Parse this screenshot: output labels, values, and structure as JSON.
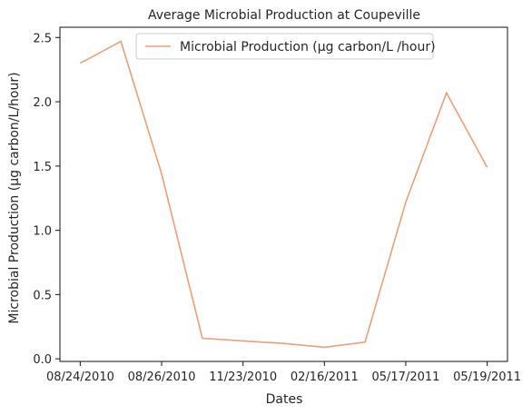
{
  "chart_data": {
    "type": "line",
    "title": "Average Microbial Production at Coupeville",
    "xlabel": "Dates",
    "ylabel": "Microbial Production (µg carbon/L/hour)",
    "x_tick_labels": [
      "08/24/2010",
      "08/26/2010",
      "11/23/2010",
      "02/16/2011",
      "05/17/2011",
      "05/19/2011"
    ],
    "x_tick_index": [
      0,
      2,
      4,
      6,
      8,
      10
    ],
    "y_ticks": [
      0.0,
      0.5,
      1.0,
      1.5,
      2.0,
      2.5
    ],
    "y_tick_labels": [
      "0.0",
      "0.5",
      "1.0",
      "1.5",
      "2.0",
      "2.5"
    ],
    "ylim": [
      -0.02,
      2.58
    ],
    "xlim": [
      -0.5,
      10.5
    ],
    "legend_position": "top-center",
    "series": [
      {
        "name": "Microbial Production (µg carbon/L /hour)",
        "color": "#e8a07a",
        "x": [
          0,
          1,
          2,
          3,
          4,
          5,
          6,
          7,
          8,
          9,
          10
        ],
        "values": [
          2.3,
          2.47,
          1.44,
          0.16,
          0.14,
          0.12,
          0.09,
          0.13,
          1.22,
          2.07,
          1.49
        ]
      }
    ]
  }
}
